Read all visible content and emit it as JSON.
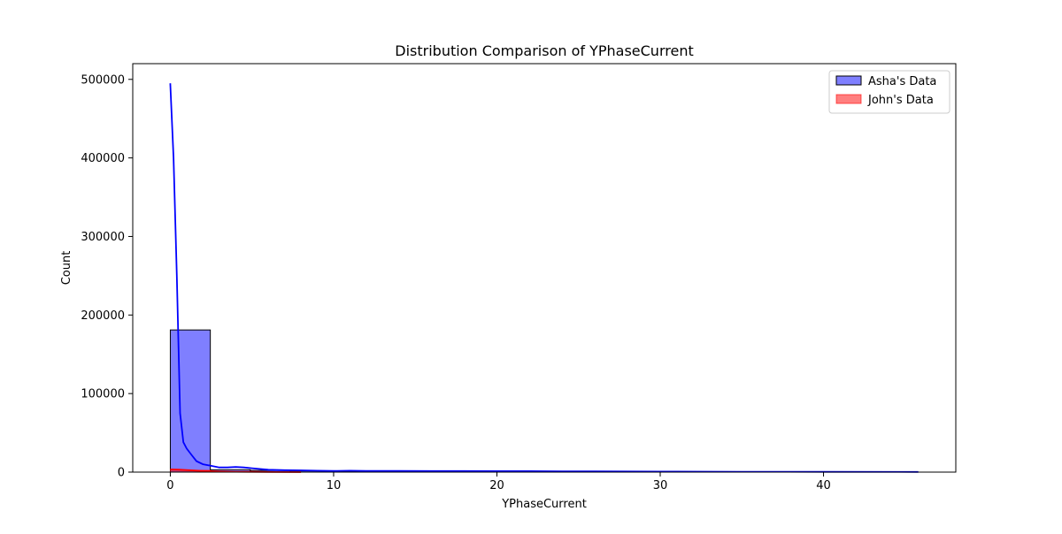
{
  "chart_data": {
    "type": "histogram",
    "title": "Distribution Comparison of YPhaseCurrent",
    "xlabel": "YPhaseCurrent",
    "ylabel": "Count",
    "xlim": [
      -2.3,
      48.1
    ],
    "ylim": [
      0,
      520000
    ],
    "x_ticks": [
      0,
      10,
      20,
      30,
      40
    ],
    "y_ticks": [
      0,
      100000,
      200000,
      300000,
      400000,
      500000
    ],
    "legend_position": "top-right",
    "grid": false,
    "series": [
      {
        "name": "Asha's Data",
        "color": "#0000ff",
        "fill_alpha": 0.5,
        "bin_edges": [
          0,
          2.45,
          4.9,
          7.35,
          9.8,
          12.25,
          14.7,
          17.15,
          19.6,
          22.05,
          24.5,
          26.95,
          29.4,
          31.85,
          34.3,
          36.75,
          39.2,
          41.65,
          44.1,
          45.8
        ],
        "bin_counts": [
          181000,
          3000,
          2200,
          1500,
          1100,
          900,
          800,
          700,
          600,
          500,
          400,
          350,
          300,
          250,
          200,
          150,
          120,
          100,
          80
        ],
        "kde": {
          "x": [
            0,
            0.2,
            0.4,
            0.6,
            0.8,
            1.0,
            1.3,
            1.6,
            2.0,
            2.5,
            3.0,
            3.5,
            4.0,
            4.5,
            5.0,
            6.0,
            7.0,
            8.0,
            9.0,
            10.0,
            11.0,
            12.0,
            14.0,
            16.0,
            18.0,
            20.0,
            22.0,
            24.0,
            26.0,
            30.0,
            35.0,
            40.0,
            45.8
          ],
          "y": [
            495000,
            400000,
            250000,
            75000,
            38000,
            30000,
            22000,
            14000,
            10000,
            8000,
            6000,
            6000,
            6500,
            6000,
            5000,
            3000,
            2500,
            2200,
            1800,
            1500,
            1800,
            1500,
            1500,
            1300,
            1300,
            1200,
            1200,
            1000,
            900,
            700,
            500,
            300,
            200
          ]
        }
      },
      {
        "name": "John's Data",
        "color": "#ff0000",
        "fill_alpha": 0.5,
        "bin_edges": [
          0,
          2.45,
          4.9,
          7.35,
          9.8,
          12.25
        ],
        "bin_counts": [
          2500,
          300,
          100,
          50,
          20
        ],
        "kde": {
          "x": [
            0,
            0.5,
            1.0,
            1.5,
            2.0,
            3.0,
            4.0,
            5.0,
            6.0,
            8.0
          ],
          "y": [
            3500,
            3200,
            2600,
            2000,
            1500,
            800,
            500,
            300,
            150,
            50
          ]
        }
      }
    ]
  }
}
